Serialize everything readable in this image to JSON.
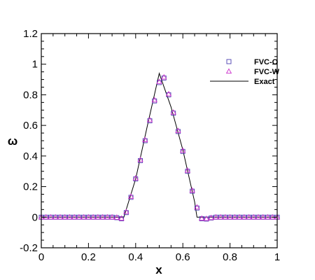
{
  "chart_data": {
    "type": "line",
    "xlabel": "x",
    "ylabel": "ω",
    "xlim": [
      0,
      1
    ],
    "ylim": [
      -0.2,
      1.2
    ],
    "xticks": [
      "0",
      "0.2",
      "0.4",
      "0.6",
      "0.8",
      "1"
    ],
    "yticks": [
      "-0.2",
      "0",
      "0.2",
      "0.4",
      "0.6",
      "0.8",
      "1",
      "1.2"
    ],
    "grid": false,
    "legend_position": "top-right",
    "colors": {
      "fvc_o": "#4b3fb0",
      "fvc_w": "#cc33cc",
      "exact": "#000000"
    },
    "series": [
      {
        "name": "FVC-O",
        "marker": "square",
        "x": [
          0.0,
          0.02,
          0.04,
          0.06,
          0.08,
          0.1,
          0.12,
          0.14,
          0.16,
          0.18,
          0.2,
          0.22,
          0.24,
          0.26,
          0.28,
          0.3,
          0.32,
          0.34,
          0.36,
          0.38,
          0.4,
          0.42,
          0.44,
          0.46,
          0.48,
          0.5,
          0.52,
          0.54,
          0.56,
          0.58,
          0.6,
          0.62,
          0.64,
          0.66,
          0.68,
          0.7,
          0.72,
          0.74,
          0.76,
          0.78,
          0.8,
          0.82,
          0.84,
          0.86,
          0.88,
          0.9,
          0.92,
          0.94,
          0.96,
          0.98,
          1.0
        ],
        "y": [
          0,
          0,
          0,
          0,
          0,
          0,
          0,
          0,
          0,
          0,
          0,
          0,
          0,
          0,
          0,
          0,
          -0.003,
          -0.01,
          0.03,
          0.13,
          0.25,
          0.37,
          0.5,
          0.63,
          0.76,
          0.88,
          0.91,
          0.8,
          0.68,
          0.56,
          0.43,
          0.3,
          0.17,
          0.06,
          -0.01,
          -0.012,
          -0.005,
          0,
          0,
          0,
          0,
          0,
          0,
          0,
          0,
          0,
          0,
          0,
          0,
          0,
          0
        ]
      },
      {
        "name": "FVC-W",
        "marker": "triangle",
        "x": [
          0.0,
          0.02,
          0.04,
          0.06,
          0.08,
          0.1,
          0.12,
          0.14,
          0.16,
          0.18,
          0.2,
          0.22,
          0.24,
          0.26,
          0.28,
          0.3,
          0.32,
          0.34,
          0.36,
          0.38,
          0.4,
          0.42,
          0.44,
          0.46,
          0.48,
          0.5,
          0.52,
          0.54,
          0.56,
          0.58,
          0.6,
          0.62,
          0.64,
          0.66,
          0.68,
          0.7,
          0.72,
          0.74,
          0.76,
          0.78,
          0.8,
          0.82,
          0.84,
          0.86,
          0.88,
          0.9,
          0.92,
          0.94,
          0.96,
          0.98,
          1.0
        ],
        "y": [
          0,
          0,
          0,
          0,
          0,
          0,
          0,
          0,
          0,
          0,
          0,
          0,
          0,
          0,
          0,
          0,
          -0.002,
          -0.008,
          0.035,
          0.135,
          0.255,
          0.375,
          0.505,
          0.635,
          0.765,
          0.885,
          0.915,
          0.805,
          0.685,
          0.565,
          0.435,
          0.305,
          0.175,
          0.065,
          -0.008,
          -0.01,
          -0.004,
          0,
          0,
          0,
          0,
          0,
          0,
          0,
          0,
          0,
          0,
          0,
          0,
          0,
          0
        ]
      },
      {
        "name": "Exact",
        "marker": "line",
        "x": [
          0.0,
          0.34,
          0.35,
          0.4,
          0.45,
          0.5,
          0.55,
          0.6,
          0.65,
          0.66,
          1.0
        ],
        "y": [
          0,
          0,
          0.0,
          0.25,
          0.6,
          0.94,
          0.72,
          0.44,
          0.1,
          0.0,
          0
        ]
      }
    ]
  }
}
